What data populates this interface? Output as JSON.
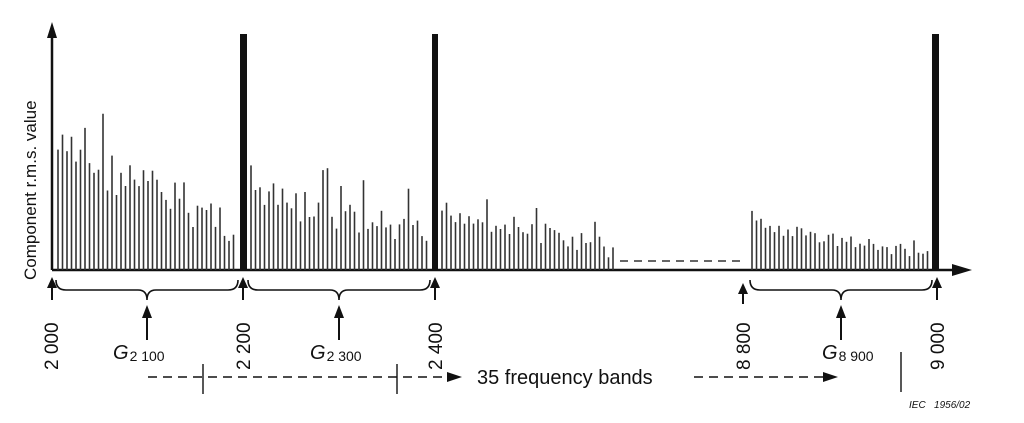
{
  "y_axis_label": "Component r.m.s. value",
  "frequency_labels": {
    "f2000": "2 000",
    "f2200": "2 200",
    "f2400": "2 400",
    "f8800": "8 800",
    "f9000": "9 000"
  },
  "group_labels": [
    {
      "main": "G",
      "sub": "2 100"
    },
    {
      "main": "G",
      "sub": "2 300"
    },
    {
      "main": "G",
      "sub": "8 900"
    }
  ],
  "bands_label": "35 frequency bands",
  "credit": "IEC   1956/02",
  "colors": {
    "ink": "#111111",
    "background": "#ffffff"
  },
  "diagram_data": {
    "harmonic_frequencies": [
      2000,
      2200,
      2400,
      9000
    ],
    "group_centres": [
      2100,
      2300,
      8900
    ]
  }
}
